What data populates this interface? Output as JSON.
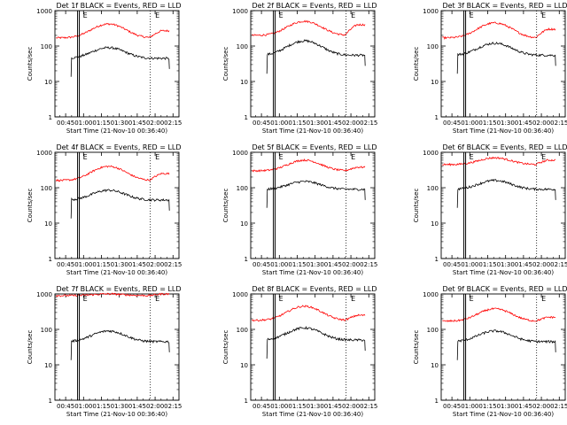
{
  "figure": {
    "time_ticks": [
      "00:45",
      "01:00",
      "01:15",
      "01:30",
      "01:45",
      "02:00",
      "02:15"
    ],
    "x_axis_label": "Start Time (21-Nov-10 00:36:40)",
    "y_axis_label": "Counts/sec",
    "y_ticks": [
      "1",
      "10",
      "100",
      "1000"
    ],
    "markers": [
      "E",
      "E"
    ],
    "colors": {
      "events": "#000000",
      "lld": "#ff0000",
      "axis": "#000000"
    }
  },
  "chart_data": [
    {
      "type": "line",
      "title": "Det 1f BLACK = Events, RED = LLD",
      "xlabel": "Start Time (21-Nov-10 00:36:40)",
      "ylabel": "Counts/sec",
      "y_scale": "log",
      "ylim": [
        1,
        1000
      ],
      "xlim": [
        "00:36",
        "02:20"
      ],
      "grid": false,
      "x_start": "00:50",
      "x_end": "02:12",
      "events_peak": 90,
      "events_base": 45,
      "lld_peak": 420,
      "lld_base": 170,
      "lld_end": 270
    },
    {
      "type": "line",
      "title": "Det 2f BLACK = Events, RED = LLD",
      "xlabel": "Start Time (21-Nov-10 00:36:40)",
      "ylabel": "Counts/sec",
      "y_scale": "log",
      "ylim": [
        1,
        1000
      ],
      "xlim": [
        "00:36",
        "02:20"
      ],
      "grid": false,
      "x_start": "00:50",
      "x_end": "02:12",
      "events_peak": 140,
      "events_base": 55,
      "lld_peak": 500,
      "lld_base": 200,
      "lld_end": 400
    },
    {
      "type": "line",
      "title": "Det 3f BLACK = Events, RED = LLD",
      "xlabel": "Start Time (21-Nov-10 00:36:40)",
      "ylabel": "Counts/sec",
      "y_scale": "log",
      "ylim": [
        1,
        1000
      ],
      "xlim": [
        "00:36",
        "02:20"
      ],
      "grid": false,
      "x_start": "00:50",
      "x_end": "02:12",
      "events_peak": 120,
      "events_base": 55,
      "lld_peak": 450,
      "lld_base": 170,
      "lld_end": 300
    },
    {
      "type": "line",
      "title": "Det 4f BLACK = Events, RED = LLD",
      "xlabel": "Start Time (21-Nov-10 00:36:40)",
      "ylabel": "Counts/sec",
      "y_scale": "log",
      "ylim": [
        1,
        1000
      ],
      "xlim": [
        "00:36",
        "02:20"
      ],
      "grid": false,
      "x_start": "00:50",
      "x_end": "02:12",
      "events_peak": 85,
      "events_base": 45,
      "lld_peak": 400,
      "lld_base": 160,
      "lld_end": 250
    },
    {
      "type": "line",
      "title": "Det 5f BLACK = Events, RED = LLD",
      "xlabel": "Start Time (21-Nov-10 00:36:40)",
      "ylabel": "Counts/sec",
      "y_scale": "log",
      "ylim": [
        1,
        1000
      ],
      "xlim": [
        "00:36",
        "02:20"
      ],
      "grid": false,
      "x_start": "00:50",
      "x_end": "02:12",
      "events_peak": 150,
      "events_base": 90,
      "lld_peak": 600,
      "lld_base": 300,
      "lld_end": 380
    },
    {
      "type": "line",
      "title": "Det 6f BLACK = Events, RED = LLD",
      "xlabel": "Start Time (21-Nov-10 00:36:40)",
      "ylabel": "Counts/sec",
      "y_scale": "log",
      "ylim": [
        1,
        1000
      ],
      "xlim": [
        "00:36",
        "02:20"
      ],
      "grid": false,
      "x_start": "00:50",
      "x_end": "02:12",
      "events_peak": 160,
      "events_base": 90,
      "lld_peak": 700,
      "lld_base": 450,
      "lld_end": 600
    },
    {
      "type": "line",
      "title": "Det 7f BLACK = Events, RED = LLD",
      "xlabel": "Start Time (21-Nov-10 00:36:40)",
      "ylabel": "Counts/sec",
      "y_scale": "log",
      "ylim": [
        1,
        1000
      ],
      "xlim": [
        "00:36",
        "02:20"
      ],
      "grid": false,
      "x_start": "00:50",
      "x_end": "02:12",
      "events_peak": 90,
      "events_base": 45,
      "lld_peak": 1000,
      "lld_base": 900,
      "lld_end": 1000
    },
    {
      "type": "line",
      "title": "Det 8f BLACK = Events, RED = LLD",
      "xlabel": "Start Time (21-Nov-10 00:36:40)",
      "ylabel": "Counts/sec",
      "y_scale": "log",
      "ylim": [
        1,
        1000
      ],
      "xlim": [
        "00:36",
        "02:20"
      ],
      "grid": false,
      "x_start": "00:50",
      "x_end": "02:12",
      "events_peak": 110,
      "events_base": 50,
      "lld_peak": 450,
      "lld_base": 180,
      "lld_end": 250
    },
    {
      "type": "line",
      "title": "Det 9f BLACK = Events, RED = LLD",
      "xlabel": "Start Time (21-Nov-10 00:36:40)",
      "ylabel": "Counts/sec",
      "y_scale": "log",
      "ylim": [
        1,
        1000
      ],
      "xlim": [
        "00:36",
        "02:20"
      ],
      "grid": false,
      "x_start": "00:50",
      "x_end": "02:12",
      "events_peak": 90,
      "events_base": 45,
      "lld_peak": 380,
      "lld_base": 170,
      "lld_end": 220
    }
  ]
}
